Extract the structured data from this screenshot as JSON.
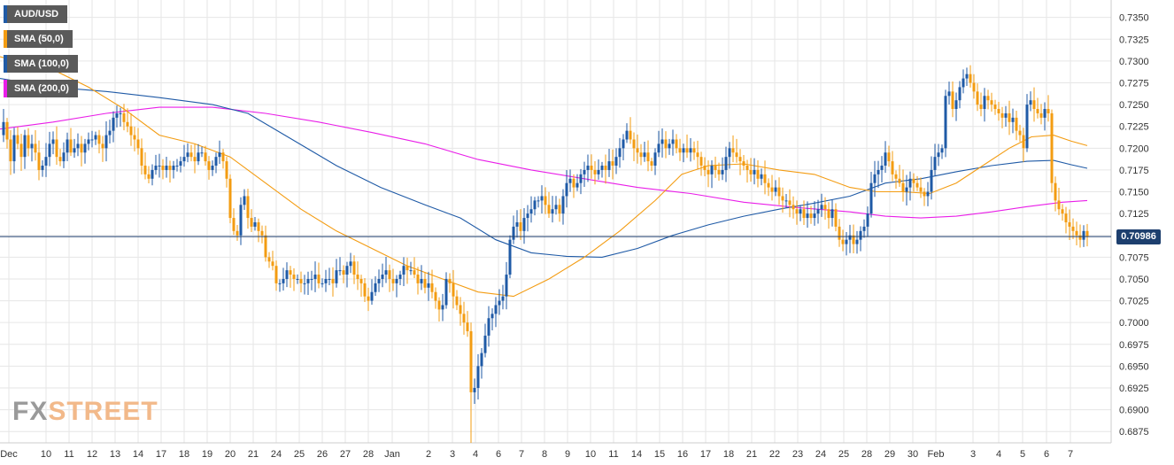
{
  "legend": {
    "items": [
      {
        "label": "AUD/USD",
        "color": "#1f5aa6"
      },
      {
        "label": "SMA (50,0)",
        "color": "#f39c12"
      },
      {
        "label": "SMA (100,0)",
        "color": "#1f5aa6"
      },
      {
        "label": "SMA (200,0)",
        "color": "#e91ee8"
      }
    ]
  },
  "watermark": {
    "part1": "FX",
    "part2": "STREET"
  },
  "current_price": "0.70986",
  "colors": {
    "bull": "#1f5aa6",
    "bear": "#f39c12",
    "sma50": "#f39c12",
    "sma100": "#1f5aa6",
    "sma200": "#e91ee8",
    "price_line": "#1d3f6e",
    "grid": "#e6e6e6",
    "axis_text": "#333333"
  },
  "chart_data": {
    "type": "candlestick",
    "title": "",
    "xlabel": "",
    "ylabel": "",
    "ylim": [
      0.686,
      0.737
    ],
    "grid": true,
    "legend_position": "top-left",
    "y_ticks": [
      "0.7350",
      "0.7325",
      "0.7300",
      "0.7275",
      "0.7250",
      "0.7225",
      "0.7200",
      "0.7175",
      "0.7150",
      "0.7125",
      "0.7100",
      "0.7075",
      "0.7050",
      "0.7025",
      "0.7000",
      "0.6975",
      "0.6950",
      "0.6925",
      "0.6900",
      "0.6875"
    ],
    "x_ticks": [
      "Dec",
      "10",
      "11",
      "12",
      "13",
      "14",
      "17",
      "18",
      "19",
      "20",
      "21",
      "24",
      "25",
      "26",
      "27",
      "28",
      "Jan",
      "2",
      "3",
      "4",
      "6",
      "7",
      "8",
      "9",
      "10",
      "11",
      "14",
      "15",
      "16",
      "17",
      "18",
      "21",
      "22",
      "23",
      "24",
      "25",
      "28",
      "29",
      "30",
      "Feb",
      "3",
      "4",
      "5",
      "6",
      "7"
    ],
    "current_price": 0.70986,
    "series_path": [
      [
        0,
        0.7215
      ],
      [
        4,
        0.723
      ],
      [
        8,
        0.721
      ],
      [
        12,
        0.7185
      ],
      [
        16,
        0.7215
      ],
      [
        20,
        0.7205
      ],
      [
        24,
        0.719
      ],
      [
        28,
        0.7215
      ],
      [
        32,
        0.72
      ],
      [
        36,
        0.7205
      ],
      [
        40,
        0.7195
      ],
      [
        44,
        0.7175
      ],
      [
        48,
        0.718
      ],
      [
        52,
        0.719
      ],
      [
        56,
        0.7205
      ],
      [
        60,
        0.721
      ],
      [
        64,
        0.719
      ],
      [
        68,
        0.7185
      ],
      [
        72,
        0.7195
      ],
      [
        76,
        0.721
      ],
      [
        80,
        0.7195
      ],
      [
        84,
        0.72
      ],
      [
        88,
        0.7205
      ],
      [
        92,
        0.7195
      ],
      [
        96,
        0.7205
      ],
      [
        100,
        0.721
      ],
      [
        104,
        0.721
      ],
      [
        108,
        0.7215
      ],
      [
        112,
        0.7205
      ],
      [
        116,
        0.72
      ],
      [
        120,
        0.7215
      ],
      [
        124,
        0.722
      ],
      [
        128,
        0.7235
      ],
      [
        132,
        0.724
      ],
      [
        136,
        0.724
      ],
      [
        140,
        0.723
      ],
      [
        144,
        0.7225
      ],
      [
        148,
        0.7215
      ],
      [
        152,
        0.721
      ],
      [
        156,
        0.72
      ],
      [
        160,
        0.718
      ],
      [
        164,
        0.717
      ],
      [
        168,
        0.7165
      ],
      [
        172,
        0.7175
      ],
      [
        176,
        0.718
      ],
      [
        180,
        0.718
      ],
      [
        184,
        0.7175
      ],
      [
        188,
        0.718
      ],
      [
        192,
        0.7175
      ],
      [
        196,
        0.718
      ],
      [
        200,
        0.718
      ],
      [
        204,
        0.7185
      ],
      [
        208,
        0.719
      ],
      [
        212,
        0.7195
      ],
      [
        216,
        0.719
      ],
      [
        220,
        0.7185
      ],
      [
        224,
        0.7195
      ],
      [
        228,
        0.7195
      ],
      [
        232,
        0.7185
      ],
      [
        236,
        0.7175
      ],
      [
        240,
        0.718
      ],
      [
        244,
        0.719
      ],
      [
        248,
        0.7195
      ],
      [
        252,
        0.7185
      ],
      [
        256,
        0.7165
      ],
      [
        260,
        0.712
      ],
      [
        264,
        0.7105
      ],
      [
        268,
        0.71
      ],
      [
        272,
        0.7135
      ],
      [
        276,
        0.7145
      ],
      [
        280,
        0.712
      ],
      [
        284,
        0.711
      ],
      [
        288,
        0.7115
      ],
      [
        292,
        0.7105
      ],
      [
        296,
        0.71
      ],
      [
        300,
        0.7075
      ],
      [
        304,
        0.707
      ],
      [
        308,
        0.7065
      ],
      [
        312,
        0.7045
      ],
      [
        316,
        0.7045
      ],
      [
        320,
        0.705
      ],
      [
        324,
        0.706
      ],
      [
        328,
        0.7055
      ],
      [
        332,
        0.705
      ],
      [
        336,
        0.705
      ],
      [
        340,
        0.7045
      ],
      [
        344,
        0.7045
      ],
      [
        348,
        0.705
      ],
      [
        352,
        0.705
      ],
      [
        356,
        0.7055
      ],
      [
        360,
        0.7045
      ],
      [
        364,
        0.7045
      ],
      [
        368,
        0.705
      ],
      [
        372,
        0.705
      ],
      [
        376,
        0.7045
      ],
      [
        380,
        0.706
      ],
      [
        384,
        0.706
      ],
      [
        388,
        0.7055
      ],
      [
        392,
        0.7065
      ],
      [
        396,
        0.707
      ],
      [
        400,
        0.7055
      ],
      [
        404,
        0.705
      ],
      [
        408,
        0.7045
      ],
      [
        412,
        0.703
      ],
      [
        416,
        0.7025
      ],
      [
        420,
        0.7035
      ],
      [
        424,
        0.7045
      ],
      [
        428,
        0.705
      ],
      [
        432,
        0.7055
      ],
      [
        436,
        0.706
      ],
      [
        440,
        0.705
      ],
      [
        444,
        0.7045
      ],
      [
        448,
        0.705
      ],
      [
        452,
        0.7055
      ],
      [
        456,
        0.7065
      ],
      [
        460,
        0.706
      ],
      [
        464,
        0.706
      ],
      [
        468,
        0.7055
      ],
      [
        472,
        0.7045
      ],
      [
        476,
        0.705
      ],
      [
        480,
        0.704
      ],
      [
        484,
        0.7045
      ],
      [
        488,
        0.7035
      ],
      [
        492,
        0.7025
      ],
      [
        496,
        0.7015
      ],
      [
        500,
        0.702
      ],
      [
        504,
        0.705
      ],
      [
        508,
        0.7045
      ],
      [
        512,
        0.703
      ],
      [
        516,
        0.702
      ],
      [
        520,
        0.701
      ],
      [
        524,
        0.7
      ],
      [
        528,
        0.699
      ],
      [
        532,
        0.692
      ],
      [
        536,
        0.6925
      ],
      [
        540,
        0.695
      ],
      [
        544,
        0.6965
      ],
      [
        548,
        0.6985
      ],
      [
        552,
        0.7005
      ],
      [
        556,
        0.701
      ],
      [
        560,
        0.702
      ],
      [
        564,
        0.7025
      ],
      [
        568,
        0.703
      ],
      [
        572,
        0.7055
      ],
      [
        576,
        0.7095
      ],
      [
        580,
        0.711
      ],
      [
        584,
        0.7115
      ],
      [
        588,
        0.7105
      ],
      [
        592,
        0.712
      ],
      [
        596,
        0.7125
      ],
      [
        600,
        0.713
      ],
      [
        604,
        0.714
      ],
      [
        608,
        0.714
      ],
      [
        612,
        0.7145
      ],
      [
        616,
        0.7135
      ],
      [
        620,
        0.7125
      ],
      [
        624,
        0.713
      ],
      [
        628,
        0.7135
      ],
      [
        632,
        0.7125
      ],
      [
        636,
        0.7145
      ],
      [
        640,
        0.716
      ],
      [
        644,
        0.7165
      ],
      [
        648,
        0.7155
      ],
      [
        652,
        0.716
      ],
      [
        656,
        0.717
      ],
      [
        660,
        0.7175
      ],
      [
        664,
        0.718
      ],
      [
        668,
        0.7175
      ],
      [
        672,
        0.717
      ],
      [
        676,
        0.7175
      ],
      [
        680,
        0.718
      ],
      [
        684,
        0.7175
      ],
      [
        688,
        0.7185
      ],
      [
        692,
        0.718
      ],
      [
        696,
        0.719
      ],
      [
        700,
        0.72
      ],
      [
        704,
        0.721
      ],
      [
        708,
        0.722
      ],
      [
        712,
        0.721
      ],
      [
        716,
        0.72
      ],
      [
        720,
        0.7195
      ],
      [
        724,
        0.719
      ],
      [
        728,
        0.7195
      ],
      [
        732,
        0.7185
      ],
      [
        736,
        0.718
      ],
      [
        740,
        0.7195
      ],
      [
        744,
        0.7205
      ],
      [
        748,
        0.721
      ],
      [
        752,
        0.72
      ],
      [
        756,
        0.7205
      ],
      [
        760,
        0.721
      ],
      [
        764,
        0.72
      ],
      [
        768,
        0.7195
      ],
      [
        772,
        0.72
      ],
      [
        776,
        0.7195
      ],
      [
        780,
        0.72
      ],
      [
        784,
        0.7195
      ],
      [
        788,
        0.719
      ],
      [
        792,
        0.718
      ],
      [
        796,
        0.7175
      ],
      [
        800,
        0.717
      ],
      [
        804,
        0.718
      ],
      [
        808,
        0.7175
      ],
      [
        812,
        0.717
      ],
      [
        816,
        0.7175
      ],
      [
        820,
        0.719
      ],
      [
        824,
        0.72
      ],
      [
        828,
        0.7195
      ],
      [
        832,
        0.719
      ],
      [
        836,
        0.7185
      ],
      [
        840,
        0.718
      ],
      [
        844,
        0.7175
      ],
      [
        848,
        0.717
      ],
      [
        852,
        0.7175
      ],
      [
        856,
        0.7165
      ],
      [
        860,
        0.717
      ],
      [
        864,
        0.716
      ],
      [
        868,
        0.7155
      ],
      [
        872,
        0.715
      ],
      [
        876,
        0.7155
      ],
      [
        880,
        0.7145
      ],
      [
        884,
        0.714
      ],
      [
        888,
        0.714
      ],
      [
        892,
        0.7135
      ],
      [
        896,
        0.713
      ],
      [
        900,
        0.7125
      ],
      [
        904,
        0.713
      ],
      [
        908,
        0.712
      ],
      [
        912,
        0.7125
      ],
      [
        916,
        0.712
      ],
      [
        920,
        0.7125
      ],
      [
        924,
        0.713
      ],
      [
        928,
        0.7135
      ],
      [
        932,
        0.713
      ],
      [
        936,
        0.712
      ],
      [
        940,
        0.713
      ],
      [
        944,
        0.711
      ],
      [
        948,
        0.7095
      ],
      [
        952,
        0.709
      ],
      [
        956,
        0.7095
      ],
      [
        960,
        0.71
      ],
      [
        964,
        0.709
      ],
      [
        968,
        0.7095
      ],
      [
        972,
        0.7105
      ],
      [
        976,
        0.711
      ],
      [
        980,
        0.7125
      ],
      [
        984,
        0.716
      ],
      [
        988,
        0.717
      ],
      [
        992,
        0.7175
      ],
      [
        996,
        0.718
      ],
      [
        1000,
        0.7195
      ],
      [
        1004,
        0.7185
      ],
      [
        1008,
        0.717
      ],
      [
        1012,
        0.7165
      ],
      [
        1016,
        0.716
      ],
      [
        1020,
        0.715
      ],
      [
        1024,
        0.7155
      ],
      [
        1028,
        0.7165
      ],
      [
        1032,
        0.716
      ],
      [
        1036,
        0.7155
      ],
      [
        1040,
        0.715
      ],
      [
        1044,
        0.7145
      ],
      [
        1048,
        0.715
      ],
      [
        1052,
        0.7175
      ],
      [
        1056,
        0.719
      ],
      [
        1060,
        0.7195
      ],
      [
        1064,
        0.72
      ],
      [
        1068,
        0.726
      ],
      [
        1072,
        0.7265
      ],
      [
        1076,
        0.7245
      ],
      [
        1080,
        0.7255
      ],
      [
        1084,
        0.727
      ],
      [
        1088,
        0.728
      ],
      [
        1092,
        0.7285
      ],
      [
        1096,
        0.7275
      ],
      [
        1100,
        0.7265
      ],
      [
        1104,
        0.725
      ],
      [
        1108,
        0.7245
      ],
      [
        1112,
        0.726
      ],
      [
        1116,
        0.7255
      ],
      [
        1120,
        0.725
      ],
      [
        1124,
        0.7245
      ],
      [
        1128,
        0.724
      ],
      [
        1132,
        0.7235
      ],
      [
        1136,
        0.724
      ],
      [
        1140,
        0.723
      ],
      [
        1144,
        0.7235
      ],
      [
        1148,
        0.722
      ],
      [
        1152,
        0.7215
      ],
      [
        1156,
        0.72
      ],
      [
        1160,
        0.725
      ],
      [
        1164,
        0.7255
      ],
      [
        1168,
        0.7245
      ],
      [
        1172,
        0.724
      ],
      [
        1176,
        0.7235
      ],
      [
        1180,
        0.7245
      ],
      [
        1184,
        0.724
      ],
      [
        1188,
        0.716
      ],
      [
        1192,
        0.714
      ],
      [
        1196,
        0.713
      ],
      [
        1200,
        0.7125
      ],
      [
        1204,
        0.7115
      ],
      [
        1208,
        0.711
      ],
      [
        1212,
        0.7105
      ],
      [
        1216,
        0.71
      ],
      [
        1220,
        0.7095
      ],
      [
        1224,
        0.7105
      ],
      [
        1228,
        0.7099
      ]
    ],
    "sma50": [
      [
        0,
        0.7305
      ],
      [
        60,
        0.729
      ],
      [
        100,
        0.727
      ],
      [
        140,
        0.7245
      ],
      [
        180,
        0.7215
      ],
      [
        220,
        0.7205
      ],
      [
        260,
        0.719
      ],
      [
        300,
        0.716
      ],
      [
        340,
        0.713
      ],
      [
        380,
        0.7105
      ],
      [
        420,
        0.7085
      ],
      [
        460,
        0.7065
      ],
      [
        500,
        0.705
      ],
      [
        540,
        0.7035
      ],
      [
        580,
        0.703
      ],
      [
        620,
        0.705
      ],
      [
        660,
        0.7075
      ],
      [
        700,
        0.7105
      ],
      [
        740,
        0.714
      ],
      [
        770,
        0.717
      ],
      [
        800,
        0.718
      ],
      [
        840,
        0.7182
      ],
      [
        880,
        0.7175
      ],
      [
        920,
        0.717
      ],
      [
        960,
        0.7155
      ],
      [
        990,
        0.715
      ],
      [
        1020,
        0.715
      ],
      [
        1050,
        0.7148
      ],
      [
        1080,
        0.716
      ],
      [
        1110,
        0.718
      ],
      [
        1140,
        0.72
      ],
      [
        1165,
        0.7213
      ],
      [
        1190,
        0.7215
      ],
      [
        1210,
        0.7208
      ],
      [
        1228,
        0.7203
      ]
    ],
    "sma100": [
      [
        0,
        0.728
      ],
      [
        60,
        0.727
      ],
      [
        120,
        0.7265
      ],
      [
        180,
        0.7258
      ],
      [
        240,
        0.725
      ],
      [
        280,
        0.724
      ],
      [
        330,
        0.721
      ],
      [
        380,
        0.718
      ],
      [
        430,
        0.7155
      ],
      [
        480,
        0.7135
      ],
      [
        520,
        0.712
      ],
      [
        560,
        0.7095
      ],
      [
        600,
        0.708
      ],
      [
        640,
        0.7076
      ],
      [
        680,
        0.7075
      ],
      [
        720,
        0.7085
      ],
      [
        760,
        0.71
      ],
      [
        800,
        0.7112
      ],
      [
        840,
        0.7122
      ],
      [
        880,
        0.713
      ],
      [
        920,
        0.7137
      ],
      [
        960,
        0.7145
      ],
      [
        1000,
        0.716
      ],
      [
        1040,
        0.7165
      ],
      [
        1080,
        0.7173
      ],
      [
        1120,
        0.718
      ],
      [
        1160,
        0.7185
      ],
      [
        1190,
        0.7186
      ],
      [
        1210,
        0.7181
      ],
      [
        1228,
        0.7177
      ]
    ],
    "sma200": [
      [
        0,
        0.7222
      ],
      [
        60,
        0.723
      ],
      [
        120,
        0.724
      ],
      [
        180,
        0.7247
      ],
      [
        240,
        0.7247
      ],
      [
        300,
        0.724
      ],
      [
        360,
        0.723
      ],
      [
        420,
        0.7218
      ],
      [
        480,
        0.7205
      ],
      [
        540,
        0.7187
      ],
      [
        600,
        0.7175
      ],
      [
        660,
        0.7165
      ],
      [
        720,
        0.7155
      ],
      [
        780,
        0.7148
      ],
      [
        840,
        0.7138
      ],
      [
        900,
        0.7132
      ],
      [
        960,
        0.7127
      ],
      [
        1000,
        0.7122
      ],
      [
        1040,
        0.712
      ],
      [
        1080,
        0.7122
      ],
      [
        1120,
        0.7127
      ],
      [
        1160,
        0.7133
      ],
      [
        1200,
        0.7138
      ],
      [
        1228,
        0.714
      ]
    ]
  }
}
